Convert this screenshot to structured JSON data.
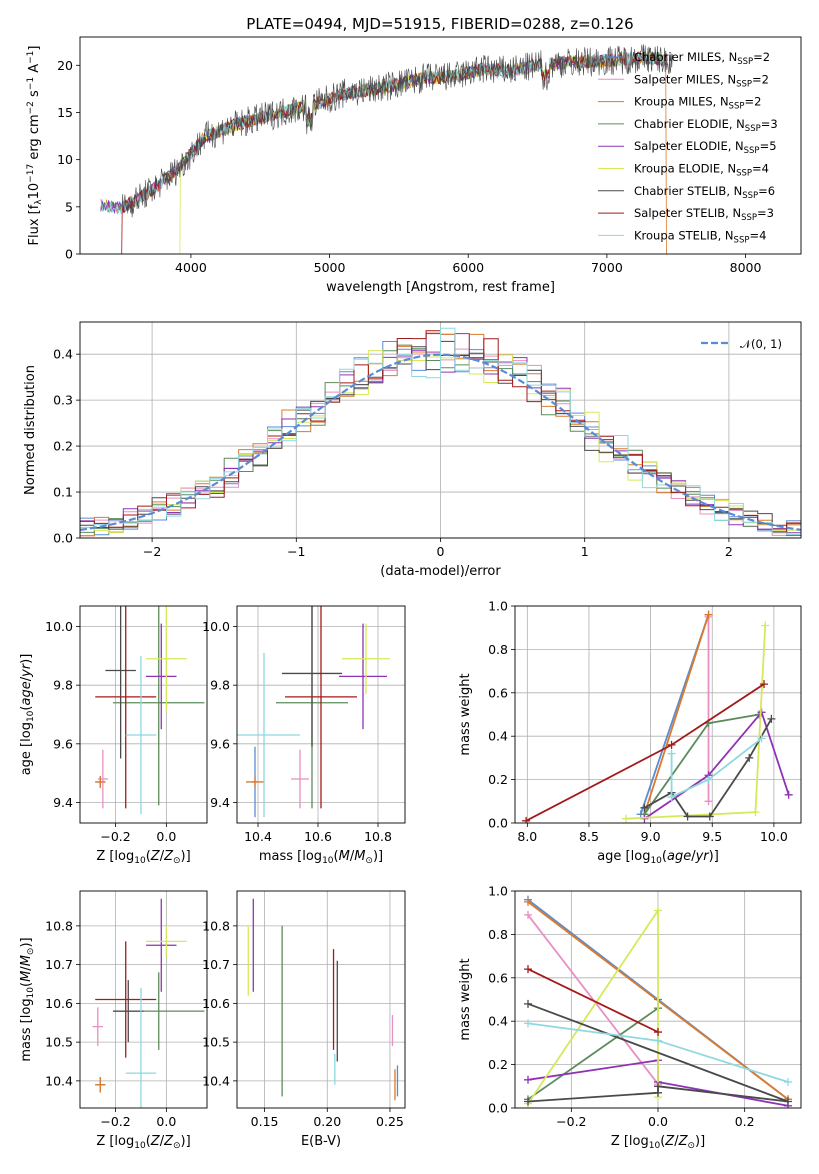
{
  "figure": {
    "title": "PLATE=0494, MJD=51915, FIBERID=0288, z=0.126"
  },
  "models": [
    {
      "label": "Chabrier MILES, N",
      "sub": "SSP",
      "suffix": "=2",
      "color": "#5b8bd6"
    },
    {
      "label": "Salpeter MILES, N",
      "sub": "SSP",
      "suffix": "=2",
      "color": "#e88fc4"
    },
    {
      "label": "Kroupa MILES, N",
      "sub": "SSP",
      "suffix": "=2",
      "color": "#dc7a2b"
    },
    {
      "label": "Chabrier ELODIE, N",
      "sub": "SSP",
      "suffix": "=3",
      "color": "#5c8b5c"
    },
    {
      "label": "Salpeter ELODIE, N",
      "sub": "SSP",
      "suffix": "=5",
      "color": "#8f33b5"
    },
    {
      "label": "Kroupa ELODIE, N",
      "sub": "SSP",
      "suffix": "=4",
      "color": "#d6e85a"
    },
    {
      "label": "Chabrier STELIB, N",
      "sub": "SSP",
      "suffix": "=6",
      "color": "#4a4a4a"
    },
    {
      "label": "Salpeter STELIB, N",
      "sub": "SSP",
      "suffix": "=3",
      "color": "#a31a1a"
    },
    {
      "label": "Kroupa STELIB, N",
      "sub": "SSP",
      "suffix": "=4",
      "color": "#8ed8e0"
    }
  ],
  "chart_data": [
    {
      "id": "spectrum",
      "type": "line",
      "xlabel": "wavelength [Angstrom, rest frame]",
      "ylabel_html": "Flux [f<tspan baseline-shift='-3' font-size='9'>λ</tspan>10<tspan baseline-shift='5' font-size='9'>−17</tspan> erg cm<tspan baseline-shift='5' font-size='9'>−2</tspan> s<tspan baseline-shift='5' font-size='9'>−1</tspan> A<tspan baseline-shift='5' font-size='9'>−1</tspan>]",
      "xlim": [
        3200,
        8400
      ],
      "ylim": [
        0,
        23
      ],
      "xticks": [
        4000,
        5000,
        6000,
        7000,
        8000
      ],
      "yticks": [
        0,
        5,
        10,
        15,
        20
      ],
      "data_anchor": [
        [
          3350,
          5.2
        ],
        [
          3500,
          4.8
        ],
        [
          3700,
          6.6
        ],
        [
          3900,
          8.9
        ],
        [
          4100,
          12.4
        ],
        [
          4300,
          13.6
        ],
        [
          4500,
          14.4
        ],
        [
          4700,
          15.2
        ],
        [
          4900,
          15.9
        ],
        [
          5100,
          17.0
        ],
        [
          5300,
          17.4
        ],
        [
          5500,
          18.0
        ],
        [
          5700,
          18.7
        ],
        [
          5900,
          18.8
        ],
        [
          6100,
          19.6
        ],
        [
          6300,
          19.4
        ],
        [
          6500,
          20.0
        ],
        [
          6700,
          20.3
        ],
        [
          6900,
          20.4
        ],
        [
          7100,
          20.6
        ],
        [
          7300,
          20.8
        ],
        [
          7430,
          20.5
        ]
      ],
      "dropouts": [
        {
          "x": 3500,
          "model": 7
        },
        {
          "x": 3920,
          "model": 5
        },
        {
          "x": 6810,
          "model": 5
        },
        {
          "x": 7430,
          "model": 2
        }
      ]
    },
    {
      "id": "residuals",
      "type": "histogram",
      "xlabel": "(data-model)/error",
      "ylabel": "Normed distribution",
      "xlim": [
        -2.5,
        2.5
      ],
      "ylim": [
        0,
        0.47
      ],
      "xticks": [
        -2,
        -1,
        0,
        1,
        2
      ],
      "yticks": [
        0.0,
        0.1,
        0.2,
        0.3,
        0.4
      ],
      "bin_width": 0.1,
      "gaussian_label": "𝒩(0, 1)",
      "gaussian_color": "#5b8bd6"
    },
    {
      "id": "age_vs_Z",
      "type": "errorbar",
      "xlabel_html": "Z [log<tspan baseline-shift='-3' font-size='9'>10</tspan>(<tspan font-style='italic'>Z</tspan>/<tspan font-style='italic'>Z</tspan><tspan baseline-shift='-3' font-size='9'>⊙</tspan>)]",
      "ylabel_html": "age  [log<tspan baseline-shift='-3' font-size='9'>10</tspan>(<tspan font-style='italic'>age</tspan>/<tspan font-style='italic'>yr</tspan>)]",
      "xlim": [
        -0.34,
        0.16
      ],
      "ylim": [
        9.33,
        10.07
      ],
      "xticks": [
        -0.2,
        0.0
      ],
      "yticks": [
        9.4,
        9.6,
        9.8,
        10.0
      ],
      "points": [
        {
          "m": 0,
          "x": -0.26,
          "y": 9.47,
          "xe": 0.02,
          "ye": 0.02
        },
        {
          "m": 1,
          "x": -0.25,
          "y": 9.48,
          "xe": 0.02,
          "ye": 0.1
        },
        {
          "m": 2,
          "x": -0.26,
          "y": 9.47,
          "xe": 0.02,
          "ye": 0.02
        },
        {
          "m": 3,
          "x": -0.03,
          "y": 9.74,
          "xe": 0.18,
          "ye": 0.35
        },
        {
          "m": 4,
          "x": -0.02,
          "y": 9.83,
          "xe": 0.06,
          "ye": 0.18
        },
        {
          "m": 5,
          "x": 0.0,
          "y": 9.89,
          "xe": 0.08,
          "ye": 0.18
        },
        {
          "m": 6,
          "x": -0.18,
          "y": 9.85,
          "xe": 0.06,
          "ye": 0.3
        },
        {
          "m": 7,
          "x": -0.16,
          "y": 9.76,
          "xe": 0.12,
          "ye": 0.38
        },
        {
          "m": 8,
          "x": -0.1,
          "y": 9.63,
          "xe": 0.06,
          "ye": 0.27
        }
      ]
    },
    {
      "id": "age_vs_mass",
      "type": "errorbar",
      "xlabel_html": "mass [log<tspan baseline-shift='-3' font-size='9'>10</tspan>(<tspan font-style='italic'>M</tspan>/<tspan font-style='italic'>M</tspan><tspan baseline-shift='-3' font-size='9'>⊙</tspan>)]",
      "ylabel_html": "",
      "xlim": [
        10.33,
        10.89
      ],
      "ylim": [
        9.33,
        10.07
      ],
      "xticks": [
        10.4,
        10.6,
        10.8
      ],
      "yticks": [
        9.4,
        9.6,
        9.8,
        10.0
      ],
      "points": [
        {
          "m": 0,
          "x": 10.39,
          "y": 9.47,
          "xe": 0.01,
          "ye": 0.12
        },
        {
          "m": 1,
          "x": 10.54,
          "y": 9.48,
          "xe": 0.03,
          "ye": 0.1
        },
        {
          "m": 2,
          "x": 10.39,
          "y": 9.47,
          "xe": 0.03,
          "ye": 0.02
        },
        {
          "m": 3,
          "x": 10.58,
          "y": 9.74,
          "xe": 0.12,
          "ye": 0.36
        },
        {
          "m": 4,
          "x": 10.75,
          "y": 9.83,
          "xe": 0.08,
          "ye": 0.18
        },
        {
          "m": 5,
          "x": 10.76,
          "y": 9.89,
          "xe": 0.08,
          "ye": 0.12
        },
        {
          "m": 6,
          "x": 10.58,
          "y": 9.84,
          "xe": 0.1,
          "ye": 0.25
        },
        {
          "m": 7,
          "x": 10.61,
          "y": 9.76,
          "xe": 0.12,
          "ye": 0.38
        },
        {
          "m": 8,
          "x": 10.42,
          "y": 9.63,
          "xe": 0.12,
          "ye": 0.28
        }
      ]
    },
    {
      "id": "weight_vs_age",
      "type": "line",
      "xlabel_html": "age  [log<tspan baseline-shift='-3' font-size='9'>10</tspan>(<tspan font-style='italic'>age</tspan>/<tspan font-style='italic'>yr</tspan>)]",
      "ylabel": "mass weight",
      "xlim": [
        7.9,
        10.22
      ],
      "ylim": [
        0,
        1.0
      ],
      "xticks": [
        8.0,
        8.5,
        9.0,
        9.5,
        10.0
      ],
      "yticks": [
        0.0,
        0.2,
        0.4,
        0.6,
        0.8,
        1.0
      ],
      "series": [
        {
          "m": 0,
          "pts": [
            [
              8.92,
              0.04
            ],
            [
              9.47,
              0.96
            ]
          ]
        },
        {
          "m": 1,
          "pts": [
            [
              9.47,
              0.1
            ],
            [
              9.47,
              0.95
            ]
          ]
        },
        {
          "m": 2,
          "pts": [
            [
              8.95,
              0.04
            ],
            [
              9.47,
              0.96
            ]
          ]
        },
        {
          "m": 3,
          "pts": [
            [
              8.95,
              0.04
            ],
            [
              9.47,
              0.46
            ],
            [
              9.88,
              0.5
            ]
          ]
        },
        {
          "m": 4,
          "pts": [
            [
              8.95,
              0.02
            ],
            [
              9.47,
              0.22
            ],
            [
              9.9,
              0.51
            ],
            [
              10.12,
              0.13
            ]
          ]
        },
        {
          "m": 5,
          "pts": [
            [
              8.8,
              0.02
            ],
            [
              9.85,
              0.05
            ],
            [
              9.93,
              0.91
            ]
          ]
        },
        {
          "m": 6,
          "pts": [
            [
              8.95,
              0.07
            ],
            [
              9.17,
              0.14
            ],
            [
              9.3,
              0.03
            ],
            [
              9.48,
              0.03
            ],
            [
              9.8,
              0.3
            ],
            [
              9.98,
              0.48
            ]
          ]
        },
        {
          "m": 7,
          "pts": [
            [
              7.99,
              0.01
            ],
            [
              9.17,
              0.36
            ],
            [
              9.92,
              0.64
            ]
          ]
        },
        {
          "m": 8,
          "pts": [
            [
              9.17,
              0.32
            ],
            [
              9.17,
              0.12
            ],
            [
              9.47,
              0.2
            ],
            [
              9.9,
              0.39
            ]
          ]
        }
      ]
    },
    {
      "id": "mass_vs_Z",
      "type": "errorbar",
      "xlabel_html": "Z [log<tspan baseline-shift='-3' font-size='9'>10</tspan>(<tspan font-style='italic'>Z</tspan>/<tspan font-style='italic'>Z</tspan><tspan baseline-shift='-3' font-size='9'>⊙</tspan>)]",
      "ylabel_html": "mass [log<tspan baseline-shift='-3' font-size='9'>10</tspan>(<tspan font-style='italic'>M</tspan>/<tspan font-style='italic'>M</tspan><tspan baseline-shift='-3' font-size='9'>⊙</tspan>)]",
      "xlim": [
        -0.34,
        0.16
      ],
      "ylim": [
        10.33,
        10.89
      ],
      "xticks": [
        -0.2,
        0.0
      ],
      "yticks": [
        10.4,
        10.5,
        10.6,
        10.7,
        10.8
      ],
      "points": [
        {
          "m": 0,
          "x": -0.26,
          "y": 10.39,
          "xe": 0.02,
          "ye": 0.02
        },
        {
          "m": 1,
          "x": -0.27,
          "y": 10.54,
          "xe": 0.02,
          "ye": 0.05
        },
        {
          "m": 2,
          "x": -0.26,
          "y": 10.39,
          "xe": 0.02,
          "ye": 0.02
        },
        {
          "m": 3,
          "x": -0.03,
          "y": 10.58,
          "xe": 0.18,
          "ye": 0.1
        },
        {
          "m": 4,
          "x": -0.02,
          "y": 10.75,
          "xe": 0.06,
          "ye": 0.12
        },
        {
          "m": 5,
          "x": 0.0,
          "y": 10.76,
          "xe": 0.08,
          "ye": 0.04
        },
        {
          "m": 6,
          "x": -0.15,
          "y": 10.58,
          "xe": 0.06,
          "ye": 0.08
        },
        {
          "m": 7,
          "x": -0.16,
          "y": 10.61,
          "xe": 0.12,
          "ye": 0.15
        },
        {
          "m": 8,
          "x": -0.1,
          "y": 10.42,
          "xe": 0.06,
          "ye": 0.22
        }
      ]
    },
    {
      "id": "mass_vs_ebv",
      "type": "errorbar",
      "xlabel": "E(B-V)",
      "ylabel_html": "",
      "xlim": [
        0.128,
        0.262
      ],
      "ylim": [
        10.33,
        10.89
      ],
      "xticks": [
        0.15,
        0.2,
        0.25
      ],
      "yticks": [
        10.4,
        10.5,
        10.6,
        10.7,
        10.8
      ],
      "points": [
        {
          "m": 0,
          "x": 0.256,
          "y": 10.4,
          "xe": 0.0,
          "ye": 0.04
        },
        {
          "m": 1,
          "x": 0.252,
          "y": 10.53,
          "xe": 0.0,
          "ye": 0.04
        },
        {
          "m": 2,
          "x": 0.254,
          "y": 10.39,
          "xe": 0.0,
          "ye": 0.04
        },
        {
          "m": 3,
          "x": 0.164,
          "y": 10.58,
          "xe": 0.0,
          "ye": 0.22
        },
        {
          "m": 4,
          "x": 0.141,
          "y": 10.75,
          "xe": 0.0,
          "ye": 0.12
        },
        {
          "m": 5,
          "x": 0.137,
          "y": 10.71,
          "xe": 0.0,
          "ye": 0.09
        },
        {
          "m": 6,
          "x": 0.208,
          "y": 10.58,
          "xe": 0.0,
          "ye": 0.13
        },
        {
          "m": 7,
          "x": 0.205,
          "y": 10.61,
          "xe": 0.0,
          "ye": 0.13
        },
        {
          "m": 8,
          "x": 0.206,
          "y": 10.43,
          "xe": 0.0,
          "ye": 0.04
        }
      ]
    },
    {
      "id": "weight_vs_Z",
      "type": "line",
      "xlabel_html": "Z [log<tspan baseline-shift='-3' font-size='9'>10</tspan>(<tspan font-style='italic'>Z</tspan>/<tspan font-style='italic'>Z</tspan><tspan baseline-shift='-3' font-size='9'>⊙</tspan>)]",
      "ylabel": "mass weight",
      "xlim": [
        -0.33,
        0.33
      ],
      "ylim": [
        0,
        1.0
      ],
      "xticks": [
        -0.2,
        0.0,
        0.2
      ],
      "yticks": [
        0.0,
        0.2,
        0.4,
        0.6,
        0.8,
        1.0
      ],
      "series": [
        {
          "m": 0,
          "pts": [
            [
              -0.3,
              0.96
            ],
            [
              0.3,
              0.04
            ]
          ]
        },
        {
          "m": 1,
          "pts": [
            [
              -0.3,
              0.89
            ],
            [
              0.0,
              0.11
            ]
          ]
        },
        {
          "m": 2,
          "pts": [
            [
              -0.3,
              0.95
            ],
            [
              0.3,
              0.04
            ]
          ]
        },
        {
          "m": 3,
          "pts": [
            [
              -0.3,
              0.04
            ],
            [
              0.0,
              0.46
            ],
            [
              0.0,
              0.5
            ]
          ]
        },
        {
          "m": 4,
          "pts": [
            [
              -0.3,
              0.13
            ],
            [
              0.0,
              0.22
            ],
            [
              0.0,
              0.12
            ],
            [
              0.3,
              0.01
            ]
          ]
        },
        {
          "m": 5,
          "pts": [
            [
              -0.3,
              0.02
            ],
            [
              0.0,
              0.91
            ],
            [
              0.0,
              0.05
            ]
          ]
        },
        {
          "m": 6,
          "pts": [
            [
              -0.3,
              0.03
            ],
            [
              0.0,
              0.07
            ],
            [
              0.0,
              0.1
            ],
            [
              0.3,
              0.03
            ],
            [
              -0.3,
              0.48
            ]
          ]
        },
        {
          "m": 7,
          "pts": [
            [
              -0.3,
              0.64
            ],
            [
              0.0,
              0.35
            ]
          ]
        },
        {
          "m": 8,
          "pts": [
            [
              -0.3,
              0.39
            ],
            [
              0.0,
              0.31
            ],
            [
              0.3,
              0.12
            ]
          ]
        }
      ]
    }
  ]
}
